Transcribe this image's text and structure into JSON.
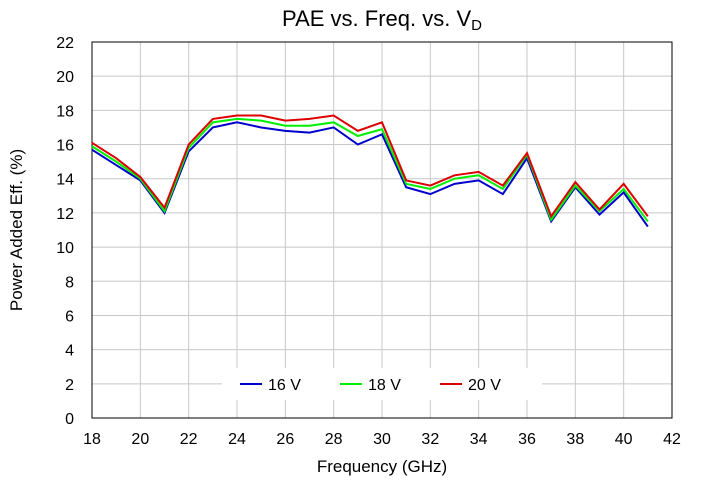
{
  "chart_data": {
    "type": "line",
    "title": "PAE vs. Freq. vs. V",
    "title_subscript": "D",
    "x_label": "Frequency (GHz)",
    "y_label": "Power Added Eff. (%)",
    "x": [
      18,
      19,
      20,
      21,
      22,
      23,
      24,
      25,
      26,
      27,
      28,
      29,
      30,
      31,
      32,
      33,
      34,
      35,
      36,
      37,
      38,
      39,
      40,
      41
    ],
    "series": [
      {
        "name": "16 V",
        "color": "#0000cc",
        "values": [
          15.7,
          14.8,
          13.9,
          12.0,
          15.6,
          17.0,
          17.3,
          17.0,
          16.8,
          16.7,
          17.0,
          16.0,
          16.6,
          13.5,
          13.1,
          13.7,
          13.9,
          13.1,
          15.2,
          11.5,
          13.5,
          11.9,
          13.2,
          11.2
        ]
      },
      {
        "name": "18 V",
        "color": "#00ee00",
        "values": [
          15.9,
          15.0,
          14.0,
          12.1,
          15.8,
          17.3,
          17.5,
          17.4,
          17.1,
          17.1,
          17.3,
          16.5,
          16.9,
          13.7,
          13.4,
          14.0,
          14.2,
          13.4,
          15.4,
          11.6,
          13.6,
          12.1,
          13.4,
          11.5
        ]
      },
      {
        "name": "20 V",
        "color": "#dd0000",
        "values": [
          16.1,
          15.2,
          14.1,
          12.3,
          16.0,
          17.5,
          17.7,
          17.7,
          17.4,
          17.5,
          17.7,
          16.8,
          17.3,
          13.9,
          13.6,
          14.2,
          14.4,
          13.6,
          15.5,
          11.8,
          13.8,
          12.2,
          13.7,
          11.8
        ]
      }
    ],
    "xlim": [
      18,
      42
    ],
    "xticks": [
      18,
      20,
      22,
      24,
      26,
      28,
      30,
      32,
      34,
      36,
      38,
      40,
      42
    ],
    "ylim": [
      0,
      22
    ],
    "yticks": [
      0,
      2,
      4,
      6,
      8,
      10,
      12,
      14,
      16,
      18,
      20,
      22
    ],
    "grid": true,
    "legend": "bottom"
  }
}
